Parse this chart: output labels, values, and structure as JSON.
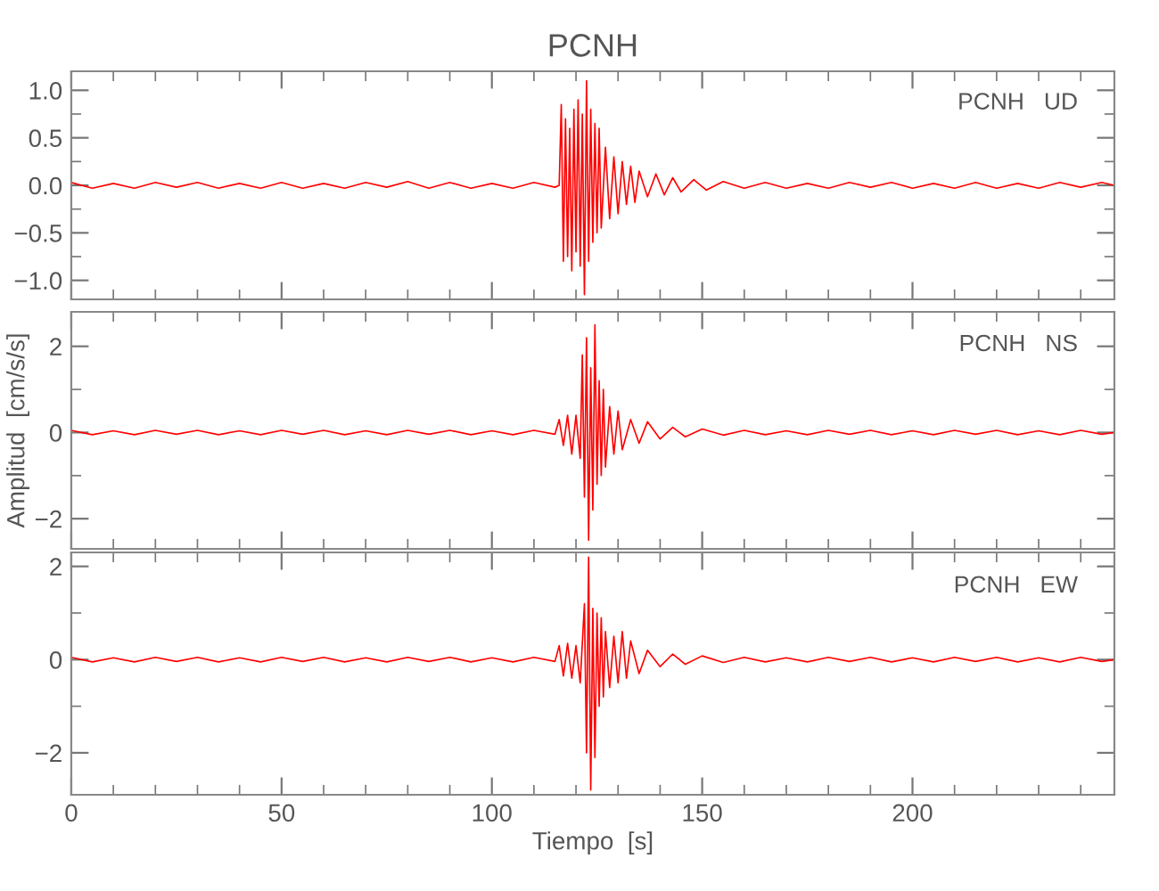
{
  "chart_data": [
    {
      "type": "line",
      "title": "PCNH",
      "annotations": [
        "PCNH   UD"
      ],
      "xlim": [
        0,
        248
      ],
      "ylim": [
        -1.2,
        1.2
      ],
      "tick_labels": "y",
      "xticks": [
        0,
        {
          "value": 10,
          "label": null
        },
        {
          "value": 20,
          "label": null
        },
        {
          "value": 30,
          "label": null
        },
        {
          "value": 40,
          "label": null
        },
        50,
        {
          "value": 60,
          "label": null
        },
        {
          "value": 70,
          "label": null
        },
        {
          "value": 80,
          "label": null
        },
        {
          "value": 90,
          "label": null
        },
        100,
        {
          "value": 110,
          "label": null
        },
        {
          "value": 120,
          "label": null
        },
        {
          "value": 130,
          "label": null
        },
        {
          "value": 140,
          "label": null
        },
        150,
        {
          "value": 160,
          "label": null
        },
        {
          "value": 170,
          "label": null
        },
        {
          "value": 180,
          "label": null
        },
        {
          "value": 190,
          "label": null
        },
        200,
        {
          "value": 210,
          "label": null
        },
        {
          "value": 220,
          "label": null
        },
        {
          "value": 230,
          "label": null
        },
        {
          "value": 240,
          "label": null
        }
      ],
      "yticks": [
        {
          "value": -1.0,
          "label": "−1.0"
        },
        {
          "value": -0.75,
          "label": null
        },
        {
          "value": -0.5,
          "label": "−0.5"
        },
        {
          "value": -0.25,
          "label": null
        },
        {
          "value": 0.0,
          "label": "0.0"
        },
        {
          "value": 0.25,
          "label": null
        },
        {
          "value": 0.5,
          "label": "0.5"
        },
        {
          "value": 0.75,
          "label": null
        },
        {
          "value": 1.0,
          "label": "1.0"
        }
      ],
      "series": [
        {
          "color": "#ff0000",
          "x": [
            0,
            5,
            10,
            15,
            20,
            25,
            30,
            35,
            40,
            45,
            50,
            55,
            60,
            65,
            70,
            75,
            80,
            85,
            90,
            95,
            100,
            105,
            110,
            115,
            116,
            116.5,
            117,
            117.5,
            118,
            118.5,
            119,
            119.5,
            120,
            120.5,
            121,
            121.5,
            122,
            122.5,
            123,
            123.5,
            124,
            124.5,
            125,
            125.5,
            126,
            127,
            128,
            129,
            130,
            131,
            132,
            133,
            134,
            135,
            137,
            139,
            141,
            143,
            145,
            148,
            151,
            155,
            160,
            165,
            170,
            175,
            180,
            185,
            190,
            195,
            200,
            205,
            210,
            215,
            220,
            225,
            230,
            235,
            240,
            245,
            248
          ],
          "values": [
            0.03,
            -0.03,
            0.02,
            -0.03,
            0.03,
            -0.02,
            0.03,
            -0.03,
            0.02,
            -0.03,
            0.03,
            -0.03,
            0.02,
            -0.03,
            0.03,
            -0.02,
            0.04,
            -0.03,
            0.03,
            -0.03,
            0.02,
            -0.03,
            0.03,
            -0.02,
            0.0,
            0.85,
            -0.8,
            0.7,
            -0.75,
            0.6,
            -0.9,
            0.8,
            -0.7,
            0.9,
            -0.85,
            0.75,
            -1.15,
            1.1,
            -0.8,
            0.8,
            -0.6,
            0.65,
            -0.5,
            0.6,
            -0.45,
            0.4,
            -0.35,
            0.3,
            -0.3,
            0.25,
            -0.2,
            0.2,
            -0.18,
            0.15,
            -0.12,
            0.12,
            -0.1,
            0.08,
            -0.07,
            0.06,
            -0.05,
            0.04,
            -0.03,
            0.03,
            -0.03,
            0.02,
            -0.03,
            0.03,
            -0.02,
            0.03,
            -0.03,
            0.02,
            -0.03,
            0.03,
            -0.03,
            0.02,
            -0.03,
            0.03,
            -0.02,
            0.03,
            0.0
          ]
        }
      ]
    },
    {
      "type": "line",
      "annotations": [
        "PCNH   NS"
      ],
      "ylabel": "Amplitud  [cm/s/s]",
      "xlim": [
        0,
        248
      ],
      "ylim": [
        -2.7,
        2.8
      ],
      "tick_labels": "y",
      "xticks": [
        0,
        {
          "value": 10,
          "label": null
        },
        {
          "value": 20,
          "label": null
        },
        {
          "value": 30,
          "label": null
        },
        {
          "value": 40,
          "label": null
        },
        50,
        {
          "value": 60,
          "label": null
        },
        {
          "value": 70,
          "label": null
        },
        {
          "value": 80,
          "label": null
        },
        {
          "value": 90,
          "label": null
        },
        100,
        {
          "value": 110,
          "label": null
        },
        {
          "value": 120,
          "label": null
        },
        {
          "value": 130,
          "label": null
        },
        {
          "value": 140,
          "label": null
        },
        150,
        {
          "value": 160,
          "label": null
        },
        {
          "value": 170,
          "label": null
        },
        {
          "value": 180,
          "label": null
        },
        {
          "value": 190,
          "label": null
        },
        200,
        {
          "value": 210,
          "label": null
        },
        {
          "value": 220,
          "label": null
        },
        {
          "value": 230,
          "label": null
        },
        {
          "value": 240,
          "label": null
        }
      ],
      "yticks": [
        {
          "value": -2,
          "label": "−2"
        },
        {
          "value": -1,
          "label": null
        },
        0,
        {
          "value": 1,
          "label": null
        },
        2
      ],
      "series": [
        {
          "color": "#ff0000",
          "x": [
            0,
            5,
            10,
            15,
            20,
            25,
            30,
            35,
            40,
            45,
            50,
            55,
            60,
            65,
            70,
            75,
            80,
            85,
            90,
            95,
            100,
            105,
            110,
            115,
            116,
            117,
            118,
            119,
            120,
            121,
            121.5,
            122,
            122.5,
            123,
            123.5,
            124,
            124.5,
            125,
            125.5,
            126,
            126.5,
            127,
            128,
            129,
            130,
            131,
            133,
            135,
            137,
            140,
            143,
            146,
            150,
            155,
            160,
            165,
            170,
            175,
            180,
            185,
            190,
            195,
            200,
            205,
            210,
            215,
            220,
            225,
            230,
            235,
            240,
            245,
            248
          ],
          "values": [
            0.05,
            -0.05,
            0.04,
            -0.05,
            0.05,
            -0.04,
            0.05,
            -0.05,
            0.04,
            -0.05,
            0.05,
            -0.04,
            0.05,
            -0.05,
            0.04,
            -0.05,
            0.05,
            -0.04,
            0.05,
            -0.05,
            0.04,
            -0.05,
            0.05,
            -0.04,
            0.3,
            -0.3,
            0.4,
            -0.5,
            0.4,
            -0.6,
            1.8,
            -1.5,
            2.2,
            -2.5,
            1.5,
            -1.8,
            2.5,
            -1.2,
            1.2,
            -1.0,
            1.0,
            -0.8,
            0.6,
            -0.5,
            0.5,
            -0.4,
            0.3,
            -0.25,
            0.25,
            -0.15,
            0.12,
            -0.1,
            0.08,
            -0.06,
            0.05,
            -0.05,
            0.04,
            -0.05,
            0.05,
            -0.04,
            0.05,
            -0.05,
            0.04,
            -0.05,
            0.05,
            -0.04,
            0.05,
            -0.05,
            0.04,
            -0.05,
            0.05,
            -0.04,
            0.0
          ]
        }
      ]
    },
    {
      "type": "line",
      "annotations": [
        "PCNH   EW"
      ],
      "xlabel": "Tiempo  [s]",
      "xlim": [
        0,
        248
      ],
      "ylim": [
        -2.9,
        2.3
      ],
      "xticks": [
        0,
        {
          "value": 10,
          "label": null
        },
        {
          "value": 20,
          "label": null
        },
        {
          "value": 30,
          "label": null
        },
        {
          "value": 40,
          "label": null
        },
        50,
        {
          "value": 60,
          "label": null
        },
        {
          "value": 70,
          "label": null
        },
        {
          "value": 80,
          "label": null
        },
        {
          "value": 90,
          "label": null
        },
        100,
        {
          "value": 110,
          "label": null
        },
        {
          "value": 120,
          "label": null
        },
        {
          "value": 130,
          "label": null
        },
        {
          "value": 140,
          "label": null
        },
        150,
        {
          "value": 160,
          "label": null
        },
        {
          "value": 170,
          "label": null
        },
        {
          "value": 180,
          "label": null
        },
        {
          "value": 190,
          "label": null
        },
        200,
        {
          "value": 210,
          "label": null
        },
        {
          "value": 220,
          "label": null
        },
        {
          "value": 230,
          "label": null
        },
        {
          "value": 240,
          "label": null
        }
      ],
      "yticks": [
        {
          "value": -2,
          "label": "−2"
        },
        {
          "value": -1,
          "label": null
        },
        0,
        {
          "value": 1,
          "label": null
        },
        2
      ],
      "series": [
        {
          "color": "#ff0000",
          "x": [
            0,
            5,
            10,
            15,
            20,
            25,
            30,
            35,
            40,
            45,
            50,
            55,
            60,
            65,
            70,
            75,
            80,
            85,
            90,
            95,
            100,
            105,
            110,
            115,
            116,
            117,
            118,
            119,
            120,
            121,
            122,
            122.5,
            123,
            123.5,
            124,
            124.5,
            125,
            125.5,
            126,
            126.5,
            127,
            128,
            129,
            130,
            131,
            132,
            133,
            135,
            137,
            140,
            143,
            146,
            150,
            155,
            160,
            165,
            170,
            175,
            180,
            185,
            190,
            195,
            200,
            205,
            210,
            215,
            220,
            225,
            230,
            235,
            240,
            245,
            248
          ],
          "values": [
            0.05,
            -0.05,
            0.04,
            -0.05,
            0.05,
            -0.04,
            0.05,
            -0.05,
            0.04,
            -0.05,
            0.05,
            -0.04,
            0.05,
            -0.05,
            0.04,
            -0.05,
            0.05,
            -0.04,
            0.05,
            -0.05,
            0.04,
            -0.05,
            0.05,
            -0.04,
            0.3,
            -0.35,
            0.35,
            -0.4,
            0.3,
            -0.5,
            1.2,
            -2.0,
            2.2,
            -2.8,
            1.1,
            -2.1,
            1.0,
            -1.0,
            0.9,
            -0.8,
            0.6,
            -0.6,
            0.5,
            -0.5,
            0.6,
            -0.4,
            0.4,
            -0.3,
            0.2,
            -0.15,
            0.12,
            -0.1,
            0.08,
            -0.06,
            0.05,
            -0.05,
            0.04,
            -0.05,
            0.05,
            -0.04,
            0.05,
            -0.05,
            0.04,
            -0.05,
            0.05,
            -0.04,
            0.05,
            -0.05,
            0.04,
            -0.05,
            0.05,
            -0.04,
            0.0
          ]
        }
      ]
    }
  ]
}
